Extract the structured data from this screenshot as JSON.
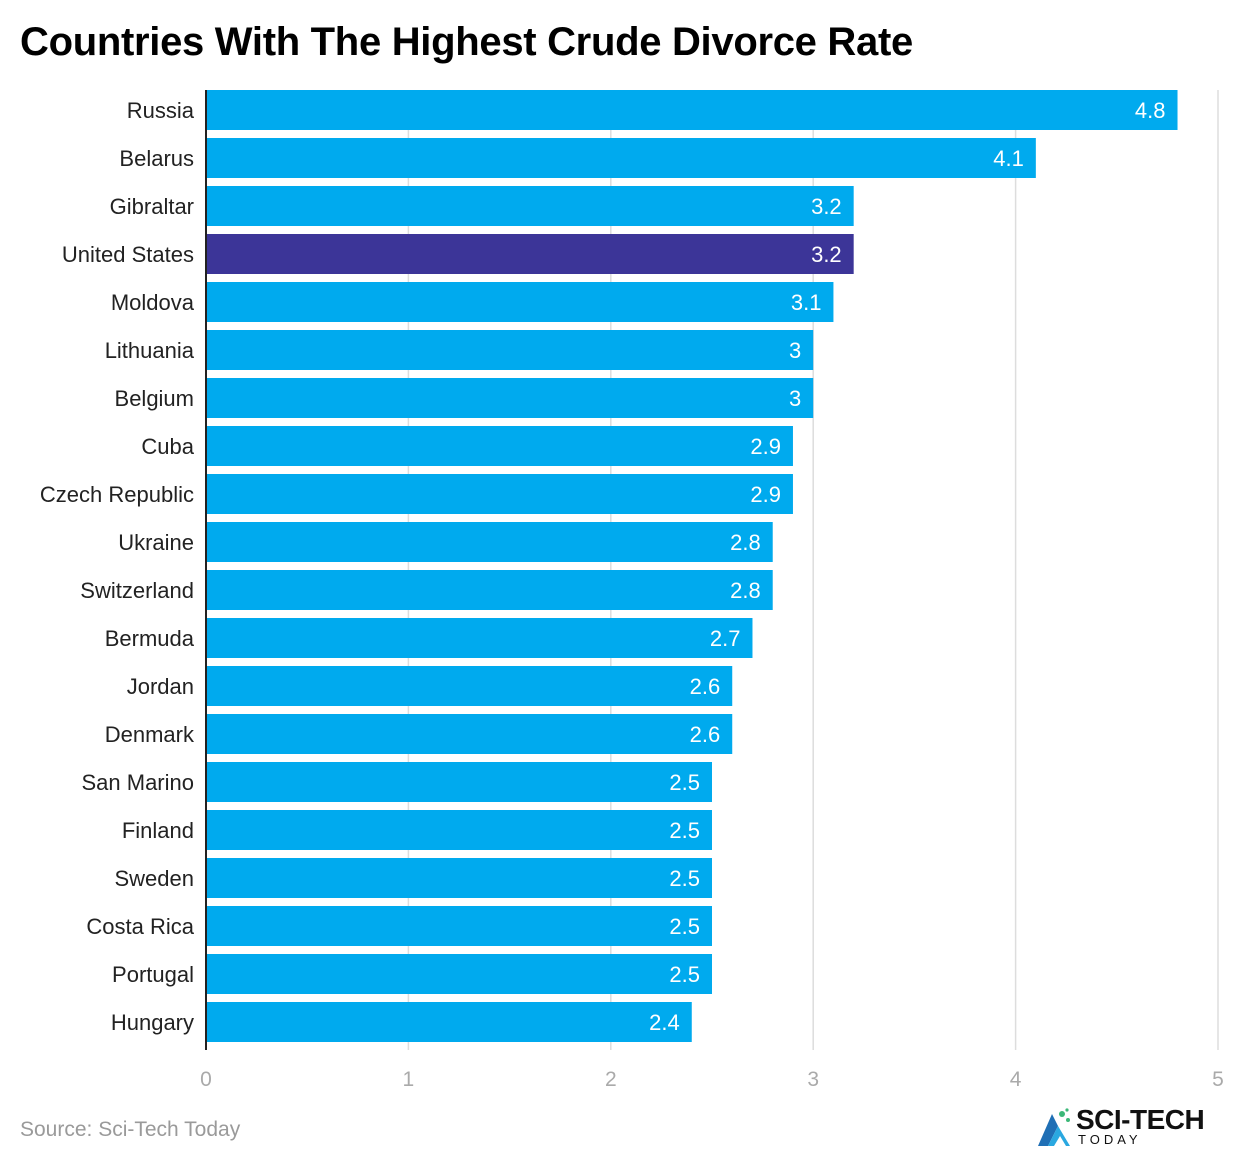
{
  "title": "Countries With The Highest Crude Divorce Rate",
  "source": "Source: Sci-Tech Today",
  "logo": {
    "name": "SCI-TECH",
    "sub": "TODAY"
  },
  "colors": {
    "bar": "#00aaee",
    "highlight": "#3c3598",
    "grid": "#dddddd",
    "axis": "#222222",
    "tick": "#aaaaaa",
    "label": "#222222",
    "value": "#ffffff"
  },
  "chart_data": {
    "type": "bar",
    "orientation": "horizontal",
    "categories": [
      "Russia",
      "Belarus",
      "Gibraltar",
      "United States",
      "Moldova",
      "Lithuania",
      "Belgium",
      "Cuba",
      "Czech Republic",
      "Ukraine",
      "Switzerland",
      "Bermuda",
      "Jordan",
      "Denmark",
      "San Marino",
      "Finland",
      "Sweden",
      "Costa Rica",
      "Portugal",
      "Hungary"
    ],
    "values": [
      4.8,
      4.1,
      3.2,
      3.2,
      3.1,
      3,
      3,
      2.9,
      2.9,
      2.8,
      2.8,
      2.7,
      2.6,
      2.6,
      2.5,
      2.5,
      2.5,
      2.5,
      2.5,
      2.4
    ],
    "highlight": "United States",
    "xlim": [
      0,
      5
    ],
    "xticks": [
      "0",
      "1",
      "2",
      "3",
      "4",
      "5"
    ],
    "grid": true
  }
}
